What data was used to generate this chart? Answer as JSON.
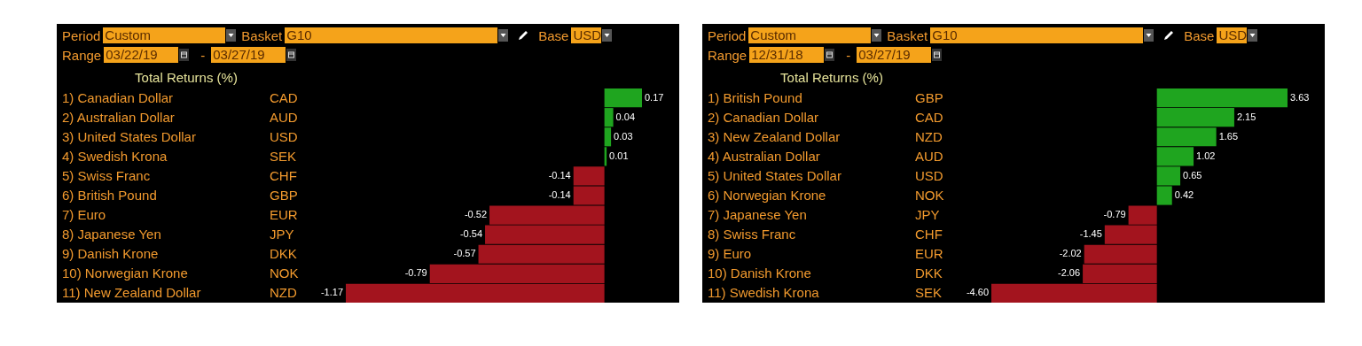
{
  "chart_data": [
    {
      "type": "bar",
      "orientation": "horizontal",
      "title": "Total Returns (%)",
      "categories": [
        "1) Canadian Dollar",
        "2) Australian Dollar",
        "3) United States Dollar",
        "4) Swedish Krona",
        "5) Swiss Franc",
        "6) British Pound",
        "7) Euro",
        "8) Japanese Yen",
        "9) Danish Krone",
        "10) Norwegian Krone",
        "11) New Zealand Dollar"
      ],
      "values": [
        0.17,
        0.04,
        0.03,
        0.01,
        -0.14,
        -0.14,
        -0.52,
        -0.54,
        -0.57,
        -0.79,
        -1.17
      ],
      "value_labels": [
        "0.17",
        "0.04",
        "0.03",
        "0.01",
        "-0.14",
        "-0.14",
        "-0.52",
        "-0.54",
        "-0.57",
        "-0.79",
        "-1.17"
      ],
      "colors": [
        "#1fa51f",
        "#1fa51f",
        "#1fa51f",
        "#1fa51f",
        "#a3141e",
        "#a3141e",
        "#a3141e",
        "#a3141e",
        "#a3141e",
        "#a3141e",
        "#a3141e"
      ],
      "annotations": [
        "Period",
        "Custom",
        "Basket",
        "G10",
        "Base",
        "USD",
        "Range",
        "03/22/19",
        "-",
        "03/27/19",
        "CAD",
        "AUD",
        "USD",
        "SEK",
        "CHF",
        "GBP",
        "EUR",
        "JPY",
        "DKK",
        "NOK",
        "NZD"
      ]
    },
    {
      "type": "bar",
      "orientation": "horizontal",
      "title": "Total Returns (%)",
      "categories": [
        "1) British Pound",
        "2) Canadian Dollar",
        "3) New Zealand Dollar",
        "4) Australian Dollar",
        "5) United States Dollar",
        "6) Norwegian Krone",
        "7) Japanese Yen",
        "8) Swiss Franc",
        "9) Euro",
        "10) Danish Krone",
        "11) Swedish Krona"
      ],
      "values": [
        3.63,
        2.15,
        1.65,
        1.02,
        0.65,
        0.42,
        -0.79,
        -1.45,
        -2.02,
        -2.06,
        -4.6
      ],
      "value_labels": [
        "3.63",
        "2.15",
        "1.65",
        "1.02",
        "0.65",
        "0.42",
        "-0.79",
        "-1.45",
        "-2.02",
        "-2.06",
        "-4.60"
      ],
      "colors": [
        "#1fa51f",
        "#1fa51f",
        "#1fa51f",
        "#1fa51f",
        "#1fa51f",
        "#1fa51f",
        "#a3141e",
        "#a3141e",
        "#a3141e",
        "#a3141e",
        "#a3141e"
      ],
      "annotations": [
        "Period",
        "Custom",
        "Basket",
        "G10",
        "Base",
        "USD",
        "Range",
        "12/31/18",
        "-",
        "03/27/19",
        "GBP",
        "CAD",
        "NZD",
        "AUD",
        "USD",
        "NOK",
        "JPY",
        "CHF",
        "EUR",
        "DKK",
        "SEK"
      ]
    }
  ]
}
